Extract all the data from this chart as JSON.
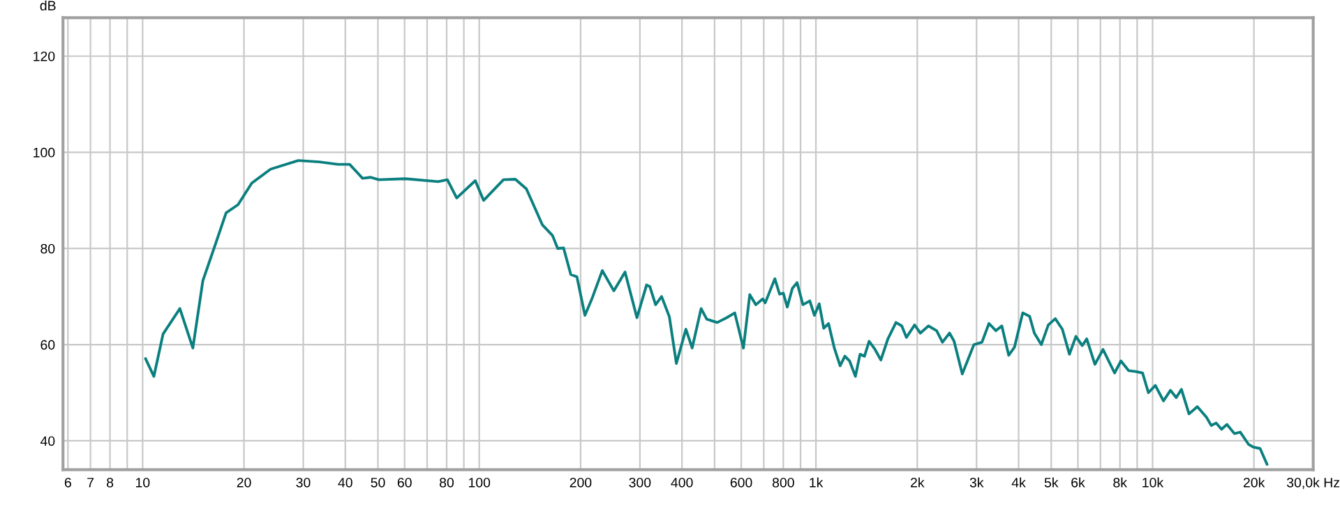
{
  "chart_data": {
    "type": "line",
    "ylabel": "dB",
    "log": "x",
    "grid": true,
    "line_style": "solid",
    "marker": "none",
    "xlim": [
      5.8,
      30000
    ],
    "ylim": [
      34,
      128
    ],
    "xticks": [
      6,
      7,
      8,
      {
        "value": 9,
        "label": null
      },
      10,
      20,
      30,
      40,
      50,
      60,
      {
        "value": 70,
        "label": null
      },
      80,
      {
        "value": 90,
        "label": null
      },
      100,
      200,
      300,
      400,
      {
        "value": 500,
        "label": null
      },
      600,
      {
        "value": 700,
        "label": null
      },
      800,
      {
        "value": 900,
        "label": null
      },
      {
        "value": 1000,
        "label": "1k"
      },
      {
        "value": 2000,
        "label": "2k"
      },
      {
        "value": 3000,
        "label": "3k"
      },
      {
        "value": 4000,
        "label": "4k"
      },
      {
        "value": 5000,
        "label": "5k"
      },
      {
        "value": 6000,
        "label": "6k"
      },
      {
        "value": 7000,
        "label": null
      },
      {
        "value": 8000,
        "label": "8k"
      },
      {
        "value": 9000,
        "label": null
      },
      {
        "value": 10000,
        "label": "10k"
      },
      {
        "value": 20000,
        "label": "20k"
      },
      {
        "value": 30000,
        "label": "30,0k Hz"
      }
    ],
    "yticks": [
      40,
      60,
      80,
      100,
      120
    ],
    "series": [
      {
        "color": "#0b7f7f",
        "x": [
          10.2,
          10.8,
          11.5,
          12.9,
          14.1,
          15.1,
          16.4,
          17.7,
          19.2,
          21.1,
          24,
          29,
          33.5,
          38,
          41.2,
          45,
          47.5,
          50.3,
          60.4,
          75.5,
          80.4,
          85.7,
          97.3,
          103,
          118,
          128,
          138,
          154,
          165,
          171,
          178,
          187,
          195,
          206,
          216,
          232,
          251,
          271,
          294,
          314,
          321,
          334,
          348,
          367,
          385,
          411,
          429,
          456,
          474,
          509,
          543,
          574,
          609,
          636,
          663,
          695,
          707,
          755,
          780,
          800,
          822,
          851,
          879,
          915,
          959,
          990,
          1023,
          1055,
          1090,
          1134,
          1180,
          1219,
          1259,
          1310,
          1352,
          1394,
          1439,
          1498,
          1559,
          1636,
          1729,
          1799,
          1857,
          1964,
          2043,
          2159,
          2283,
          2376,
          2494,
          2573,
          2721,
          2946,
          3113,
          3266,
          3425,
          3566,
          3738,
          3890,
          4114,
          4313,
          4454,
          4672,
          4901,
          5140,
          5395,
          5664,
          5918,
          6180,
          6374,
          6741,
          7126,
          7712,
          8054,
          8487,
          8903,
          9339,
          9719,
          10191,
          10776,
          11300,
          11757,
          12180,
          12830,
          13580,
          14460,
          14930,
          15450,
          16030,
          16630,
          17500,
          18220,
          19260,
          19890,
          20860,
          21880
        ],
        "values": [
          57.1,
          53.4,
          62.2,
          67.5,
          59.3,
          73.3,
          80.6,
          87.4,
          89.1,
          93.6,
          96.5,
          98.3,
          98.0,
          97.5,
          97.5,
          94.6,
          94.8,
          94.3,
          94.5,
          93.9,
          94.3,
          90.5,
          94.1,
          90.0,
          94.3,
          94.4,
          92.4,
          84.9,
          82.7,
          80.0,
          80.1,
          74.6,
          74.1,
          66.1,
          69.5,
          75.4,
          71.2,
          75.1,
          65.6,
          72.4,
          72.1,
          68.3,
          70.0,
          65.8,
          56.1,
          63.2,
          59.3,
          67.5,
          65.3,
          64.6,
          65.6,
          66.6,
          59.3,
          70.4,
          68.3,
          69.5,
          68.7,
          73.7,
          70.5,
          70.7,
          67.8,
          71.7,
          72.9,
          68.3,
          69.1,
          66.1,
          68.5,
          63.4,
          64.4,
          59.3,
          55.6,
          57.6,
          56.6,
          53.4,
          58.0,
          57.6,
          60.7,
          59.0,
          56.8,
          61.2,
          64.6,
          63.9,
          61.5,
          64.1,
          62.4,
          63.9,
          62.9,
          60.5,
          62.4,
          60.7,
          53.9,
          60.0,
          60.5,
          64.4,
          62.9,
          63.9,
          57.8,
          59.5,
          66.6,
          65.9,
          62.4,
          60.0,
          64.1,
          65.4,
          63.2,
          58.0,
          61.7,
          59.8,
          61.2,
          55.9,
          59.0,
          54.1,
          56.6,
          54.6,
          54.4,
          54.1,
          50.0,
          51.5,
          48.3,
          50.5,
          49.0,
          50.7,
          45.6,
          47.1,
          44.9,
          43.2,
          43.7,
          42.4,
          43.4,
          41.5,
          41.8,
          39.3,
          38.7,
          38.4,
          35.1
        ]
      }
    ]
  }
}
